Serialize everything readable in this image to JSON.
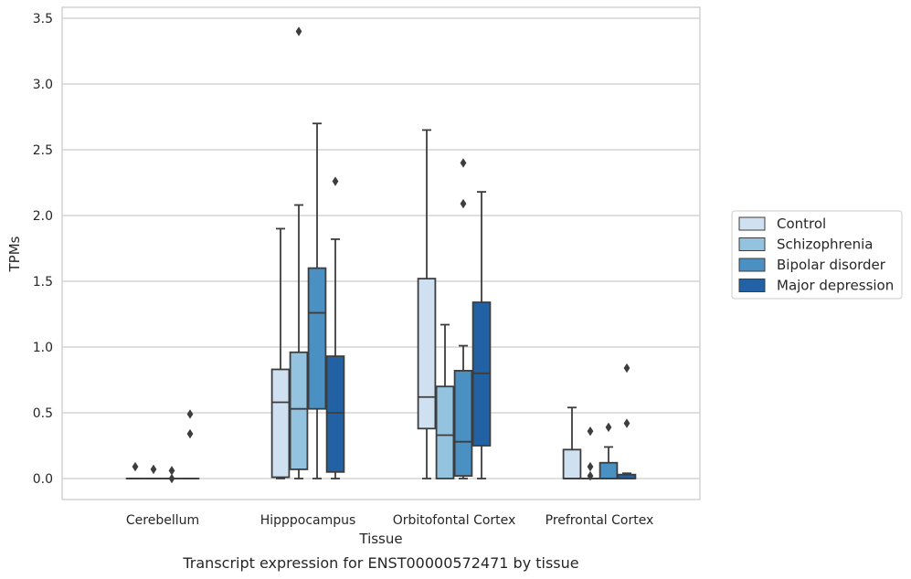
{
  "chart_data": {
    "type": "boxplot",
    "xlabel": "Tissue",
    "ylabel": "TPMs",
    "caption": "Transcript expression for ENST00000572471 by tissue",
    "ylim": [
      -0.17,
      3.57
    ],
    "yticks": [
      "0.0",
      "0.5",
      "1.0",
      "1.5",
      "2.0",
      "2.5",
      "3.0",
      "3.5"
    ],
    "grid": true,
    "legend_position": "right",
    "categories": [
      "Cerebellum",
      "Hipppocampus",
      "Orbitofontal Cortex",
      "Prefrontal Cortex"
    ],
    "series": [
      {
        "name": "Control",
        "color": "#cfe0f1",
        "boxes": [
          {
            "q1": 0.0,
            "median": 0.0,
            "q3": 0.0,
            "whisker_low": 0.0,
            "whisker_high": 0.0,
            "outliers": [
              0.09
            ]
          },
          {
            "q1": 0.01,
            "median": 0.58,
            "q3": 0.83,
            "whisker_low": 0.0,
            "whisker_high": 1.9,
            "outliers": []
          },
          {
            "q1": 0.38,
            "median": 0.62,
            "q3": 1.52,
            "whisker_low": 0.0,
            "whisker_high": 2.65,
            "outliers": []
          },
          {
            "q1": 0.0,
            "median": 0.0,
            "q3": 0.22,
            "whisker_low": 0.0,
            "whisker_high": 0.54,
            "outliers": []
          }
        ]
      },
      {
        "name": "Schizophrenia",
        "color": "#93c3df",
        "boxes": [
          {
            "q1": 0.0,
            "median": 0.0,
            "q3": 0.0,
            "whisker_low": 0.0,
            "whisker_high": 0.0,
            "outliers": [
              0.07
            ]
          },
          {
            "q1": 0.07,
            "median": 0.53,
            "q3": 0.96,
            "whisker_low": 0.0,
            "whisker_high": 2.08,
            "outliers": [
              3.4
            ]
          },
          {
            "q1": 0.0,
            "median": 0.33,
            "q3": 0.7,
            "whisker_low": 0.0,
            "whisker_high": 1.17,
            "outliers": []
          },
          {
            "q1": 0.0,
            "median": 0.0,
            "q3": 0.0,
            "whisker_low": 0.0,
            "whisker_high": 0.0,
            "outliers": [
              0.02,
              0.09,
              0.36
            ]
          }
        ]
      },
      {
        "name": "Bipolar disorder",
        "color": "#4a90c2",
        "boxes": [
          {
            "q1": 0.0,
            "median": 0.0,
            "q3": 0.0,
            "whisker_low": 0.0,
            "whisker_high": 0.0,
            "outliers": [
              0.0,
              0.06
            ]
          },
          {
            "q1": 0.53,
            "median": 1.26,
            "q3": 1.6,
            "whisker_low": 0.0,
            "whisker_high": 2.7,
            "outliers": []
          },
          {
            "q1": 0.02,
            "median": 0.28,
            "q3": 0.82,
            "whisker_low": 0.0,
            "whisker_high": 1.01,
            "outliers": [
              2.09,
              2.4
            ]
          },
          {
            "q1": 0.0,
            "median": 0.0,
            "q3": 0.12,
            "whisker_low": 0.0,
            "whisker_high": 0.24,
            "outliers": [
              0.39
            ]
          }
        ]
      },
      {
        "name": "Major depression",
        "color": "#2262a4",
        "boxes": [
          {
            "q1": 0.0,
            "median": 0.0,
            "q3": 0.0,
            "whisker_low": 0.0,
            "whisker_high": 0.0,
            "outliers": [
              0.34,
              0.49
            ]
          },
          {
            "q1": 0.05,
            "median": 0.5,
            "q3": 0.93,
            "whisker_low": 0.0,
            "whisker_high": 1.82,
            "outliers": [
              2.26
            ]
          },
          {
            "q1": 0.25,
            "median": 0.8,
            "q3": 1.34,
            "whisker_low": 0.0,
            "whisker_high": 2.18,
            "outliers": []
          },
          {
            "q1": 0.0,
            "median": 0.0,
            "q3": 0.03,
            "whisker_low": 0.0,
            "whisker_high": 0.04,
            "outliers": [
              0.42,
              0.84
            ]
          }
        ]
      }
    ]
  }
}
